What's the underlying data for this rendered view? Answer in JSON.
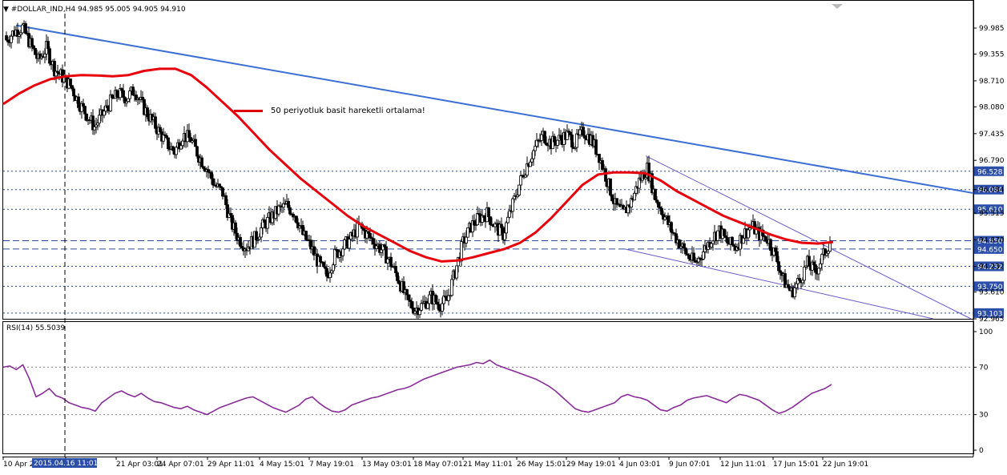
{
  "header": {
    "symbol_line": "#DOLLAR_IND,H4  94.985 95.005 94.905 94.910"
  },
  "legend": {
    "label": "50 periyotluk basit hareketli ortalama!"
  },
  "rsi": {
    "title": "RSI(14) 55.5039"
  },
  "colors": {
    "candle": "#000000",
    "ma": "#e8000b",
    "trendline": "#3c6fd6",
    "channel": "#6a5acd",
    "rsi": "#8a2b9b",
    "level_line": "#2a4b9b",
    "grid_dash": "#4a5a8a",
    "highlight_bg": "#2b4fa8",
    "highlight_text": "#ffffff"
  },
  "chart_data": [
    {
      "type": "candlestick",
      "title": "#DOLLAR_IND,H4",
      "ylim": [
        92.965,
        100.5
      ],
      "price_ticks": [
        "99.985",
        "99.355",
        "98.710",
        "98.080",
        "97.435",
        "96.790",
        "96.084",
        "95.515",
        "94.870",
        "94.232",
        "93.610",
        "92.965"
      ],
      "levels": [
        {
          "value": 96.528,
          "label": "96.528",
          "style": "dotted",
          "highlight": true
        },
        {
          "value": 96.084,
          "label": "96.084",
          "style": "dotted",
          "highlight": true
        },
        {
          "value": 95.61,
          "label": "95.610",
          "style": "dotted",
          "highlight": true
        },
        {
          "value": 94.85,
          "label": "94.850",
          "style": "dashed",
          "highlight": true
        },
        {
          "value": 94.65,
          "label": "94.650",
          "style": "dashed",
          "highlight": true
        },
        {
          "value": 94.232,
          "label": "94.232",
          "style": "dotted",
          "highlight": true
        },
        {
          "value": 93.75,
          "label": "93.750",
          "style": "dotted",
          "highlight": true
        },
        {
          "value": 93.103,
          "label": "93.103",
          "style": "dotted",
          "highlight": true
        }
      ],
      "x_labels": [
        "10 Apr 2",
        "2015.04.16 11:01",
        "21 Apr 03:01",
        "24 Apr 07:01",
        "29 Apr 11:01",
        "4 May 15:01",
        "7 May 19:01",
        "13 May 03:01",
        "18 May 07:01",
        "21 May 11:01",
        "26 May 15:01",
        "29 May 19:01",
        "4 Jun 03:01",
        "9 Jun 07:01",
        "12 Jun 11:01",
        "17 Jun 15:01",
        "22 Jun 19:01"
      ],
      "x_label_highlight": "2015.04.16 11:01",
      "close_series": [
        99.7,
        99.9,
        100.0,
        99.6,
        99.2,
        99.5,
        99.0,
        98.8,
        98.6,
        98.2,
        97.9,
        97.6,
        97.9,
        98.2,
        98.4,
        98.3,
        98.5,
        98.1,
        97.8,
        97.5,
        97.2,
        97.0,
        97.4,
        97.3,
        96.9,
        96.6,
        96.2,
        96.0,
        95.3,
        94.9,
        94.7,
        94.9,
        95.2,
        95.4,
        95.6,
        95.7,
        95.5,
        95.0,
        94.7,
        94.3,
        94.0,
        94.5,
        94.7,
        94.9,
        95.2,
        95.0,
        94.8,
        94.6,
        94.3,
        93.9,
        93.4,
        93.2,
        93.3,
        93.5,
        93.3,
        93.4,
        94.1,
        94.8,
        95.2,
        95.4,
        95.5,
        95.2,
        95.0,
        95.6,
        96.2,
        96.7,
        97.1,
        97.4,
        97.2,
        97.3,
        97.4,
        97.2,
        97.5,
        97.3,
        96.9,
        96.3,
        95.7,
        95.5,
        95.8,
        96.3,
        96.6,
        95.9,
        95.5,
        95.1,
        94.8,
        94.5,
        94.3,
        94.6,
        94.9,
        95.1,
        94.8,
        94.7,
        95.0,
        95.2,
        95.0,
        94.9,
        94.5,
        93.9,
        93.6,
        93.9,
        94.3,
        94.1,
        94.5,
        94.91
      ],
      "ma_series": [
        98.15,
        98.4,
        98.6,
        98.75,
        98.82,
        98.85,
        98.84,
        98.82,
        98.85,
        98.95,
        99.0,
        99.0,
        98.85,
        98.55,
        98.2,
        97.85,
        97.45,
        97.05,
        96.7,
        96.35,
        96.05,
        95.75,
        95.45,
        95.2,
        95.0,
        94.8,
        94.6,
        94.45,
        94.35,
        94.37,
        94.45,
        94.55,
        94.65,
        94.8,
        95.05,
        95.4,
        95.8,
        96.2,
        96.45,
        96.5,
        96.5,
        96.48,
        96.3,
        96.05,
        95.85,
        95.65,
        95.45,
        95.3,
        95.15,
        95.0,
        94.88,
        94.8,
        94.78,
        94.82
      ],
      "trendline": {
        "from": {
          "date": "10 Apr",
          "value": 100.05
        },
        "to": {
          "date": "24 Jun",
          "value": 96.0
        }
      },
      "channel_upper": {
        "from": {
          "date": "5 Jun",
          "value": 96.9
        },
        "to": {
          "date": "24 Jun",
          "value": 92.965
        }
      },
      "channel_lower": {
        "from": {
          "date": "5 Jun",
          "value": 94.65
        },
        "to": {
          "date": "24 Jun",
          "value": 92.965
        }
      }
    },
    {
      "type": "line",
      "title": "RSI(14) 55.5039",
      "ylim": [
        0,
        100
      ],
      "y_ticks": [
        "100",
        "70",
        "30",
        "0"
      ],
      "levels": [
        70,
        30
      ],
      "series": [
        {
          "values": [
            70,
            71,
            68,
            72,
            60,
            45,
            48,
            52,
            46,
            44,
            40,
            38,
            36,
            35,
            33,
            40,
            44,
            48,
            50,
            47,
            45,
            48,
            44,
            41,
            40,
            38,
            36,
            35,
            37,
            34,
            32,
            30,
            33,
            36,
            38,
            40,
            42,
            44,
            45,
            42,
            39,
            36,
            34,
            32,
            35,
            38,
            43,
            45,
            40,
            36,
            33,
            32,
            34,
            38,
            40,
            42,
            44,
            45,
            47,
            49,
            51,
            52,
            54,
            57,
            60,
            62,
            64,
            66,
            68,
            70,
            71,
            72,
            74,
            73,
            76,
            72,
            70,
            68,
            66,
            64,
            62,
            60,
            57,
            54,
            50,
            45,
            40,
            35,
            33,
            32,
            34,
            36,
            38,
            40,
            45,
            47,
            45,
            44,
            42,
            38,
            34,
            33,
            36,
            38,
            42,
            44,
            45,
            46,
            44,
            42,
            40,
            44,
            47,
            46,
            44,
            42,
            38,
            34,
            31,
            33,
            36,
            40,
            44,
            48,
            50,
            52,
            55.5
          ]
        }
      ]
    }
  ]
}
